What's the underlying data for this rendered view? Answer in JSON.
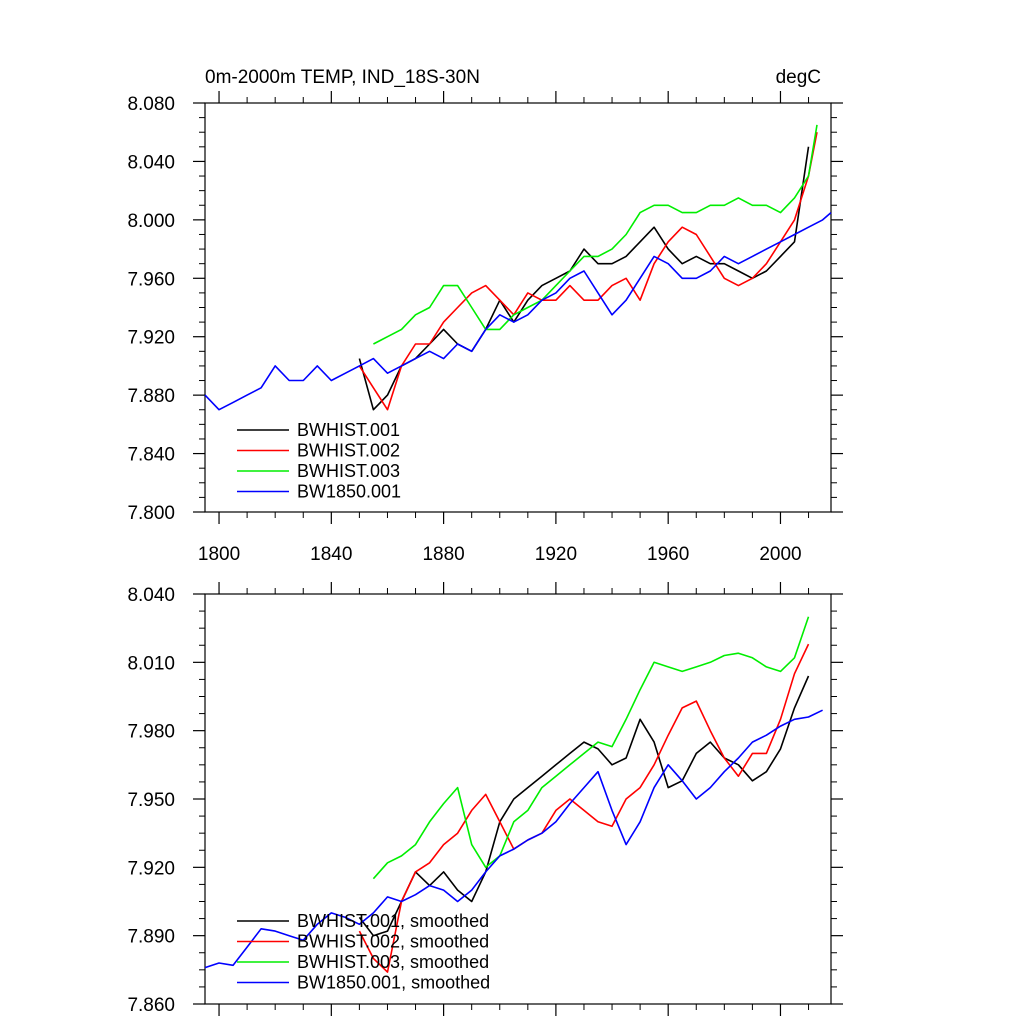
{
  "chart_data": [
    {
      "type": "line",
      "title": "0m-2000m TEMP, IND_18S-30N",
      "units": "degC",
      "xlim": [
        1795,
        2018
      ],
      "ylim": [
        7.8,
        8.08
      ],
      "xticks": [
        "1800",
        "1840",
        "1880",
        "1920",
        "1960",
        "2000"
      ],
      "yticks": [
        "7.800",
        "7.840",
        "7.880",
        "7.920",
        "7.960",
        "8.000",
        "8.040",
        "8.080"
      ],
      "legend_position": "bottom-left",
      "series": [
        {
          "name": "BWHIST.001",
          "color": "#000000",
          "x": [
            1850,
            1855,
            1860,
            1865,
            1870,
            1875,
            1880,
            1885,
            1890,
            1895,
            1900,
            1905,
            1910,
            1915,
            1920,
            1925,
            1930,
            1935,
            1940,
            1945,
            1950,
            1955,
            1960,
            1965,
            1970,
            1975,
            1980,
            1985,
            1990,
            1995,
            2000,
            2005,
            2010
          ],
          "y": [
            7.905,
            7.87,
            7.88,
            7.9,
            7.905,
            7.915,
            7.925,
            7.915,
            7.91,
            7.925,
            7.945,
            7.93,
            7.945,
            7.955,
            7.96,
            7.965,
            7.98,
            7.97,
            7.97,
            7.975,
            7.985,
            7.995,
            7.98,
            7.97,
            7.975,
            7.97,
            7.97,
            7.965,
            7.96,
            7.965,
            7.975,
            7.985,
            8.05
          ]
        },
        {
          "name": "BWHIST.002",
          "color": "#ff0000",
          "x": [
            1850,
            1855,
            1860,
            1865,
            1870,
            1875,
            1880,
            1885,
            1890,
            1895,
            1900,
            1905,
            1910,
            1915,
            1920,
            1925,
            1930,
            1935,
            1940,
            1945,
            1950,
            1955,
            1960,
            1965,
            1970,
            1975,
            1980,
            1985,
            1990,
            1995,
            2000,
            2005,
            2010,
            2013
          ],
          "y": [
            7.9,
            7.885,
            7.87,
            7.9,
            7.915,
            7.915,
            7.93,
            7.94,
            7.95,
            7.955,
            7.945,
            7.935,
            7.95,
            7.945,
            7.945,
            7.955,
            7.945,
            7.945,
            7.955,
            7.96,
            7.945,
            7.97,
            7.985,
            7.995,
            7.99,
            7.975,
            7.96,
            7.955,
            7.96,
            7.97,
            7.985,
            8.0,
            8.03,
            8.06
          ]
        },
        {
          "name": "BWHIST.003",
          "color": "#00ee00",
          "x": [
            1855,
            1860,
            1865,
            1870,
            1875,
            1880,
            1885,
            1890,
            1895,
            1900,
            1905,
            1910,
            1915,
            1920,
            1925,
            1930,
            1935,
            1940,
            1945,
            1950,
            1955,
            1960,
            1965,
            1970,
            1975,
            1980,
            1985,
            1990,
            1995,
            2000,
            2005,
            2010,
            2013
          ],
          "y": [
            7.915,
            7.92,
            7.925,
            7.935,
            7.94,
            7.955,
            7.955,
            7.94,
            7.925,
            7.925,
            7.935,
            7.94,
            7.945,
            7.955,
            7.965,
            7.975,
            7.975,
            7.98,
            7.99,
            8.005,
            8.01,
            8.01,
            8.005,
            8.005,
            8.01,
            8.01,
            8.015,
            8.01,
            8.01,
            8.005,
            8.015,
            8.03,
            8.065
          ]
        },
        {
          "name": "BW1850.001",
          "color": "#0000ff",
          "x": [
            1795,
            1800,
            1805,
            1810,
            1815,
            1820,
            1825,
            1830,
            1835,
            1840,
            1845,
            1850,
            1855,
            1860,
            1865,
            1870,
            1875,
            1880,
            1885,
            1890,
            1895,
            1900,
            1905,
            1910,
            1915,
            1920,
            1925,
            1930,
            1935,
            1940,
            1945,
            1950,
            1955,
            1960,
            1965,
            1970,
            1975,
            1980,
            1985,
            1990,
            1995,
            2000,
            2005,
            2010,
            2015,
            2018
          ],
          "y": [
            7.88,
            7.87,
            7.875,
            7.88,
            7.885,
            7.9,
            7.89,
            7.89,
            7.9,
            7.89,
            7.895,
            7.9,
            7.905,
            7.895,
            7.9,
            7.905,
            7.91,
            7.905,
            7.915,
            7.91,
            7.925,
            7.935,
            7.93,
            7.935,
            7.945,
            7.95,
            7.96,
            7.965,
            7.95,
            7.935,
            7.945,
            7.96,
            7.975,
            7.97,
            7.96,
            7.96,
            7.965,
            7.975,
            7.97,
            7.975,
            7.98,
            7.985,
            7.99,
            7.995,
            8.0,
            8.005
          ]
        }
      ]
    },
    {
      "type": "line",
      "title": "",
      "xlim": [
        1795,
        2018
      ],
      "ylim": [
        7.86,
        8.04
      ],
      "yticks": [
        "7.860",
        "7.890",
        "7.920",
        "7.950",
        "7.980",
        "8.010",
        "8.040"
      ],
      "legend_position": "bottom-left",
      "series": [
        {
          "name": "BWHIST.001, smoothed",
          "color": "#000000",
          "x": [
            1850,
            1855,
            1860,
            1865,
            1870,
            1875,
            1880,
            1885,
            1890,
            1895,
            1900,
            1905,
            1910,
            1915,
            1920,
            1925,
            1930,
            1935,
            1940,
            1945,
            1950,
            1955,
            1960,
            1965,
            1970,
            1975,
            1980,
            1985,
            1990,
            1995,
            2000,
            2005,
            2010
          ],
          "y": [
            7.898,
            7.89,
            7.892,
            7.905,
            7.918,
            7.912,
            7.918,
            7.91,
            7.905,
            7.918,
            7.94,
            7.95,
            7.955,
            7.96,
            7.965,
            7.97,
            7.975,
            7.972,
            7.965,
            7.968,
            7.985,
            7.975,
            7.955,
            7.958,
            7.97,
            7.975,
            7.968,
            7.965,
            7.958,
            7.962,
            7.972,
            7.99,
            8.004
          ]
        },
        {
          "name": "BWHIST.002, smoothed",
          "color": "#ff0000",
          "x": [
            1850,
            1855,
            1860,
            1865,
            1870,
            1875,
            1880,
            1885,
            1890,
            1895,
            1900,
            1905,
            1910,
            1915,
            1920,
            1925,
            1930,
            1935,
            1940,
            1945,
            1950,
            1955,
            1960,
            1965,
            1970,
            1975,
            1980,
            1985,
            1990,
            1995,
            2000,
            2005,
            2010
          ],
          "y": [
            7.892,
            7.88,
            7.874,
            7.905,
            7.918,
            7.922,
            7.93,
            7.935,
            7.945,
            7.952,
            7.94,
            7.928,
            7.932,
            7.935,
            7.945,
            7.95,
            7.945,
            7.94,
            7.938,
            7.95,
            7.955,
            7.965,
            7.978,
            7.99,
            7.993,
            7.98,
            7.968,
            7.96,
            7.97,
            7.97,
            7.985,
            8.005,
            8.018
          ]
        },
        {
          "name": "BWHIST.003, smoothed",
          "color": "#00ee00",
          "x": [
            1855,
            1860,
            1865,
            1870,
            1875,
            1880,
            1885,
            1890,
            1895,
            1900,
            1905,
            1910,
            1915,
            1920,
            1925,
            1930,
            1935,
            1940,
            1945,
            1950,
            1955,
            1960,
            1965,
            1970,
            1975,
            1980,
            1985,
            1990,
            1995,
            2000,
            2005,
            2010
          ],
          "y": [
            7.915,
            7.922,
            7.925,
            7.93,
            7.94,
            7.948,
            7.955,
            7.93,
            7.92,
            7.925,
            7.94,
            7.945,
            7.955,
            7.96,
            7.965,
            7.97,
            7.975,
            7.973,
            7.985,
            7.998,
            8.01,
            8.008,
            8.006,
            8.008,
            8.01,
            8.013,
            8.014,
            8.012,
            8.008,
            8.006,
            8.012,
            8.03
          ]
        },
        {
          "name": "BW1850.001, smoothed",
          "color": "#0000ff",
          "x": [
            1795,
            1800,
            1805,
            1810,
            1815,
            1820,
            1825,
            1830,
            1835,
            1840,
            1845,
            1850,
            1855,
            1860,
            1865,
            1870,
            1875,
            1880,
            1885,
            1890,
            1895,
            1900,
            1905,
            1910,
            1915,
            1920,
            1925,
            1930,
            1935,
            1940,
            1945,
            1950,
            1955,
            1960,
            1965,
            1970,
            1975,
            1980,
            1985,
            1990,
            1995,
            2000,
            2005,
            2010,
            2015
          ],
          "y": [
            7.876,
            7.878,
            7.877,
            7.885,
            7.893,
            7.892,
            7.89,
            7.888,
            7.895,
            7.9,
            7.898,
            7.895,
            7.9,
            7.907,
            7.905,
            7.908,
            7.912,
            7.91,
            7.905,
            7.91,
            7.918,
            7.925,
            7.928,
            7.932,
            7.935,
            7.94,
            7.948,
            7.955,
            7.962,
            7.945,
            7.93,
            7.94,
            7.955,
            7.965,
            7.958,
            7.95,
            7.955,
            7.962,
            7.968,
            7.975,
            7.978,
            7.982,
            7.985,
            7.986,
            7.989
          ]
        }
      ]
    }
  ]
}
